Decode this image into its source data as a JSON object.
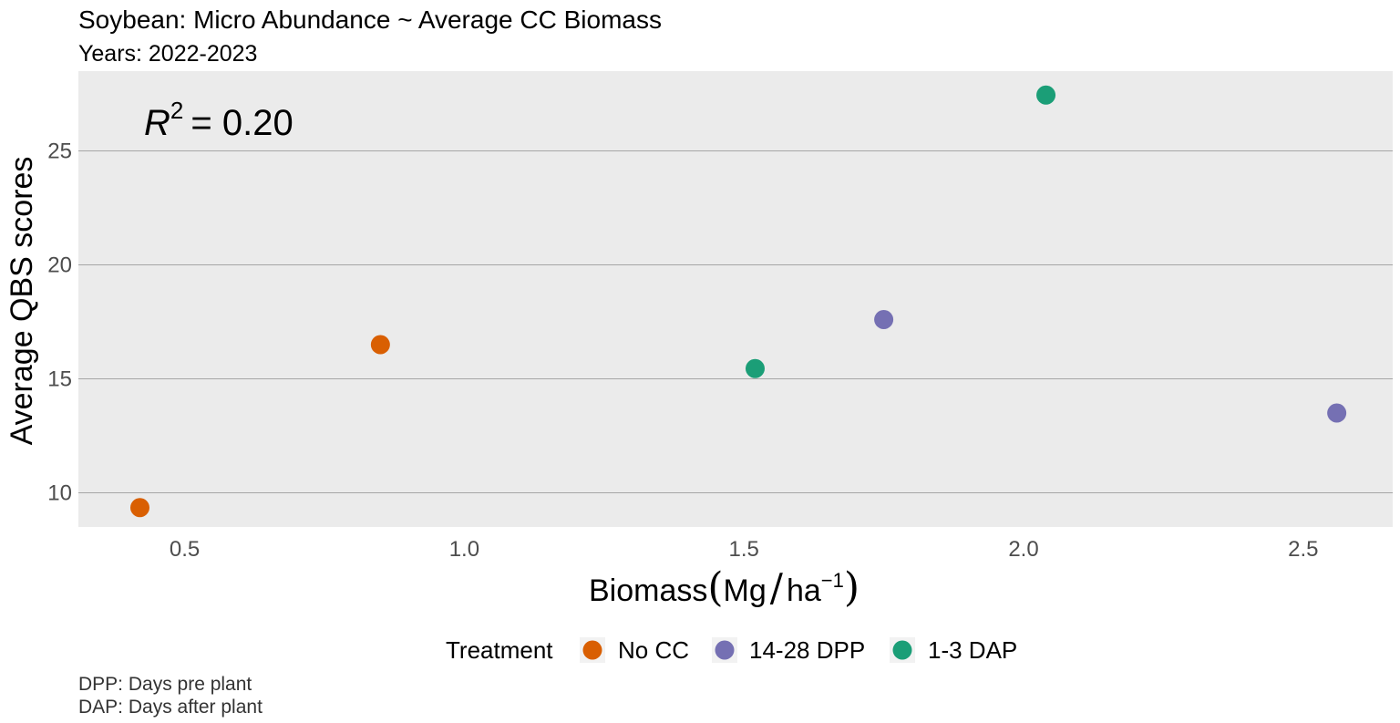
{
  "chart_data": {
    "type": "scatter",
    "title": "Soybean: Micro Abundance ~ Average CC Biomass",
    "subtitle": "Years: 2022-2023",
    "xlabel": {
      "text": "Biomass",
      "unit_main": "Mg",
      "unit_sub": "ha",
      "unit_exp": "−1"
    },
    "ylabel": "Average QBS scores",
    "xlim": [
      0.31,
      2.66
    ],
    "ylim": [
      8.5,
      28.5
    ],
    "xticks": [
      {
        "value": 0.5,
        "label": "0.5"
      },
      {
        "value": 1.0,
        "label": "1.0"
      },
      {
        "value": 1.5,
        "label": "1.5"
      },
      {
        "value": 2.0,
        "label": "2.0"
      },
      {
        "value": 2.5,
        "label": "2.5"
      }
    ],
    "yticks": [
      {
        "value": 10,
        "label": "10"
      },
      {
        "value": 15,
        "label": "15"
      },
      {
        "value": 20,
        "label": "20"
      },
      {
        "value": 25,
        "label": "25"
      }
    ],
    "grid": true,
    "annotation": {
      "symbol": "R",
      "exp": "2",
      "text": "= 0.20"
    },
    "legend": {
      "position": "bottom",
      "title": "Treatment",
      "entries": [
        {
          "name": "No CC",
          "color": "#D95F02"
        },
        {
          "name": "14-28 DPP",
          "color": "#7570B3"
        },
        {
          "name": "1-3 DAP",
          "color": "#1B9E77"
        }
      ]
    },
    "series": [
      {
        "name": "No CC",
        "color": "#D95F02",
        "points": [
          {
            "x": 0.42,
            "y": 9.35
          },
          {
            "x": 0.85,
            "y": 16.5
          }
        ]
      },
      {
        "name": "14-28 DPP",
        "color": "#7570B3",
        "points": [
          {
            "x": 1.75,
            "y": 17.6
          },
          {
            "x": 2.56,
            "y": 13.5
          }
        ]
      },
      {
        "name": "1-3 DAP",
        "color": "#1B9E77",
        "points": [
          {
            "x": 1.52,
            "y": 15.45
          },
          {
            "x": 2.04,
            "y": 27.45
          }
        ]
      }
    ],
    "caption": [
      "DPP: Days pre plant",
      "DAP: Days after plant"
    ]
  }
}
